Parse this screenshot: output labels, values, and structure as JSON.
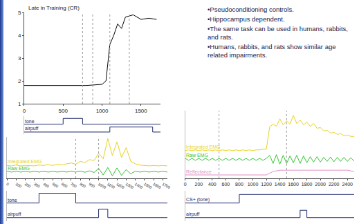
{
  "bullets": [
    "•Pseudoconditioning controls.",
    "•Hippocampus dependent.",
    "•The same task can be used in humans, rabbits, and rats.",
    "•Humans, rabbits, and rats show similar age related impairments."
  ],
  "chart_data": [
    {
      "type": "line",
      "title": "Late in Training (CR)",
      "x": [
        0,
        200,
        400,
        600,
        800,
        1000,
        1050,
        1100,
        1150,
        1200,
        1250,
        1300,
        1400,
        1500,
        1600,
        1700
      ],
      "xlim": [
        0,
        1750
      ],
      "xticks": [
        0,
        500,
        1000,
        1500
      ],
      "ylim": [
        1,
        5
      ],
      "yticks": [
        1,
        2,
        3,
        4,
        5
      ],
      "y2lim": [
        0,
        2.5
      ],
      "reference_lines": [
        750,
        880,
        1100,
        1350
      ],
      "series": [
        {
          "color": "#000000",
          "values": [
            1.8,
            1.8,
            1.8,
            1.8,
            1.8,
            1.85,
            2.0,
            3.6,
            4.0,
            4.5,
            4.3,
            4.8,
            4.9,
            4.7,
            4.75,
            4.7
          ]
        },
        {
          "name": "tone",
          "axis": "y2",
          "line_style": "step",
          "color": "#1f2a6b",
          "x": [
            0,
            500,
            750,
            1750
          ],
          "values": [
            1.4,
            2.2,
            1.4,
            1.4
          ]
        },
        {
          "name": "airpuff",
          "axis": "y2",
          "line_style": "step",
          "color": "#1f2a6b",
          "x": [
            0,
            1100,
            1650,
            1750
          ],
          "values": [
            0.3,
            1.0,
            0.3,
            0.3
          ]
        }
      ]
    },
    {
      "type": "line",
      "tick_labels": "x",
      "x": [
        0,
        50,
        100,
        150,
        200,
        250,
        300,
        350,
        400,
        450,
        500,
        550,
        600,
        650,
        700,
        750,
        800,
        850,
        900,
        950,
        1000,
        1050,
        1100,
        1150,
        1200,
        1250,
        1300,
        1350,
        1400,
        1450,
        1500,
        1550,
        1600,
        1650,
        1700,
        1750
      ],
      "xlim": [
        0,
        1750
      ],
      "xticks": [
        0,
        100,
        200,
        300,
        400,
        500,
        600,
        700,
        800,
        900,
        1000,
        1100,
        1200,
        1300,
        1400,
        1500,
        1600,
        1700
      ],
      "ylim": [
        0,
        10
      ],
      "y2lim": [
        0,
        2.5
      ],
      "reference_lines": [
        750,
        1000
      ],
      "series": [
        {
          "name": "Integrated EMG",
          "color": "#e8d21e",
          "values": [
            3.1,
            3.0,
            3.2,
            3.0,
            3.1,
            3.1,
            3.0,
            3.2,
            3.1,
            3.3,
            3.1,
            3.4,
            3.2,
            3.5,
            3.7,
            3.4,
            4.1,
            3.8,
            4.5,
            4.3,
            6.0,
            4.7,
            9.6,
            5.5,
            8.8,
            5.0,
            7.4,
            4.1,
            3.5,
            3.2,
            3.1,
            3.0,
            3.1,
            3.0,
            3.1,
            3.0
          ]
        },
        {
          "name": "Raw EMG",
          "color": "#2fc42f",
          "values": [
            1.7,
            1.5,
            1.7,
            1.5,
            1.7,
            1.5,
            1.7,
            1.5,
            1.7,
            1.5,
            1.7,
            1.5,
            1.7,
            1.5,
            1.7,
            1.5,
            1.75,
            1.45,
            1.8,
            1.4,
            2.4,
            0.8,
            2.6,
            0.6,
            2.5,
            0.7,
            2.1,
            1.1,
            1.7,
            1.5,
            1.7,
            1.5,
            1.7,
            1.5,
            1.7,
            1.5
          ]
        },
        {
          "name": "tone",
          "axis": "y2",
          "line_style": "step",
          "color": "#1f2a6b",
          "x": [
            0,
            350,
            750,
            1750
          ],
          "values": [
            1.5,
            2.3,
            1.5,
            1.5
          ]
        },
        {
          "name": "airpuff",
          "axis": "y2",
          "line_style": "step",
          "color": "#1f2a6b",
          "x": [
            0,
            1000,
            1100,
            1750
          ],
          "values": [
            0.3,
            1.0,
            0.3,
            0.3
          ]
        }
      ]
    },
    {
      "type": "line",
      "tick_labels": "x",
      "x": [
        0,
        50,
        100,
        150,
        200,
        250,
        300,
        350,
        400,
        450,
        500,
        550,
        600,
        650,
        700,
        750,
        800,
        850,
        900,
        950,
        1000,
        1050,
        1100,
        1150,
        1200,
        1250,
        1300,
        1350,
        1400,
        1450,
        1500,
        1550,
        1600,
        1650,
        1700,
        1750,
        1800,
        1850,
        1900,
        1950,
        2000,
        2050,
        2100,
        2150,
        2200,
        2250,
        2300,
        2350,
        2400,
        2450,
        2500
      ],
      "xlim": [
        0,
        2500
      ],
      "xticks": [
        0,
        200,
        400,
        600,
        800,
        1000,
        1200,
        1400,
        1600,
        1800,
        2000,
        2200,
        2400
      ],
      "ylim": [
        0,
        10
      ],
      "y2lim": [
        0,
        2.5
      ],
      "reference_lines": [
        500,
        1500
      ],
      "series": [
        {
          "name": "Integrated EMG",
          "color": "#e8d21e",
          "values": [
            4.1,
            4.2,
            4.1,
            4.2,
            4.1,
            4.2,
            4.1,
            4.2,
            4.1,
            4.2,
            4.1,
            4.2,
            4.1,
            4.2,
            4.1,
            4.2,
            4.1,
            4.2,
            4.1,
            4.2,
            4.1,
            4.2,
            4.2,
            4.3,
            4.3,
            7.6,
            8.0,
            7.7,
            8.8,
            7.9,
            8.5,
            8.0,
            9.3,
            8.1,
            8.6,
            7.9,
            8.3,
            7.7,
            8.1,
            7.4,
            7.5,
            7.0,
            7.1,
            6.7,
            6.8,
            6.5,
            6.6,
            6.3,
            6.4,
            6.2,
            6.2
          ]
        },
        {
          "name": "Raw EMG",
          "color": "#2fc42f",
          "values": [
            2.95,
            2.65,
            2.95,
            2.65,
            2.95,
            2.65,
            2.95,
            2.65,
            2.95,
            2.65,
            2.95,
            2.65,
            2.95,
            2.65,
            2.95,
            2.65,
            2.95,
            2.65,
            2.95,
            2.65,
            2.95,
            2.65,
            2.95,
            2.65,
            2.95,
            3.4,
            2.2,
            3.5,
            2.1,
            3.4,
            2.2,
            3.3,
            2.3,
            3.4,
            2.2,
            3.3,
            2.3,
            3.2,
            2.4,
            3.2,
            2.4,
            3.1,
            2.5,
            3.15,
            2.45,
            3.1,
            2.5,
            3.1,
            2.5,
            3.05,
            2.55
          ]
        },
        {
          "name": "Reflectance",
          "color": "#e38fc6",
          "x": [
            0,
            1200,
            1300,
            1400,
            2400,
            2500
          ],
          "values": [
            0.5,
            0.5,
            1.0,
            1.2,
            1.2,
            1.0
          ]
        },
        {
          "name": "CS+ (tone)",
          "axis": "y2",
          "line_style": "step",
          "color": "#1f2a6b",
          "x": [
            0,
            800,
            2500
          ],
          "values": [
            1.5,
            2.2,
            2.2
          ]
        },
        {
          "name": "airpuff",
          "axis": "y2",
          "line_style": "step",
          "color": "#1f2a6b",
          "x": [
            0,
            1700,
            1800,
            2500
          ],
          "values": [
            0.3,
            0.9,
            0.3,
            0.3
          ]
        }
      ]
    }
  ]
}
